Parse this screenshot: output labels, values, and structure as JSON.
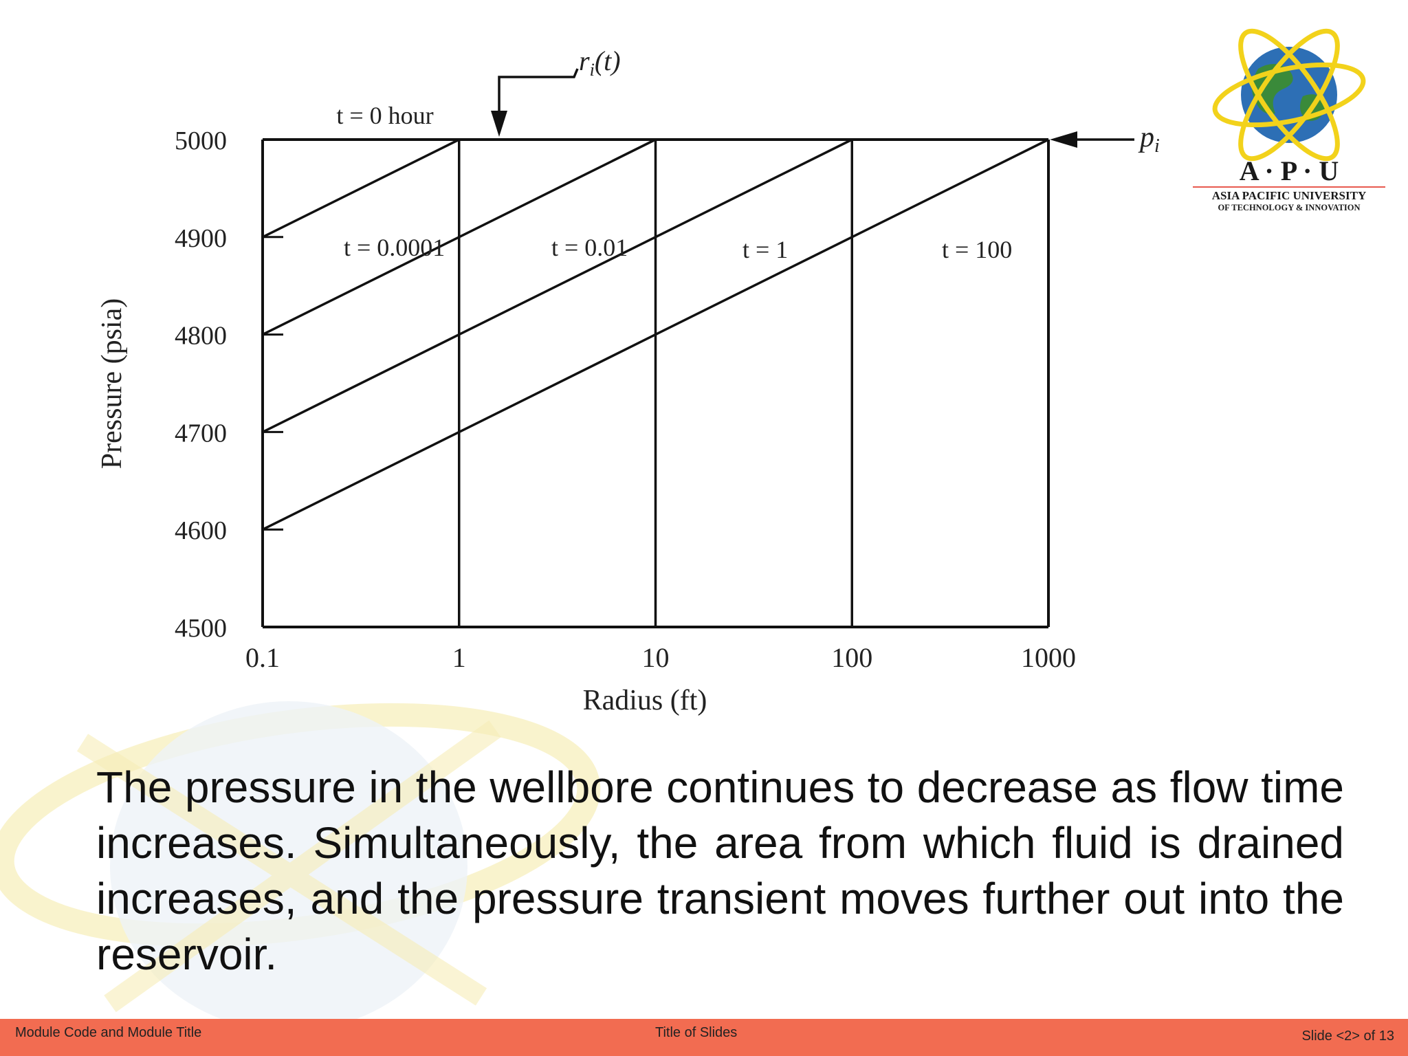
{
  "chart_data": {
    "type": "line",
    "x_scale": "log",
    "xlabel": "Radius (ft)",
    "ylabel": "Pressure (psia)",
    "xlim": [
      0.1,
      1000
    ],
    "ylim": [
      4500,
      5000
    ],
    "x_ticks": [
      "0.1",
      "1",
      "10",
      "100",
      "1000"
    ],
    "y_ticks": [
      "5000",
      "4900",
      "4800",
      "4700",
      "4600",
      "4500"
    ],
    "grid": "vertical lines at each decade",
    "series": [
      {
        "name": "t = 0 hour",
        "x": [
          0.1,
          1000
        ],
        "y": [
          5000,
          5000
        ]
      },
      {
        "name": "t = 0.0001",
        "x": [
          0.1,
          1,
          1.5
        ],
        "y": [
          4900,
          5000,
          5000
        ]
      },
      {
        "name": "t = 0.01",
        "x": [
          0.1,
          1,
          10,
          15
        ],
        "y": [
          4800,
          4900,
          5000,
          5000
        ]
      },
      {
        "name": "t = 1",
        "x": [
          0.1,
          1,
          10,
          100,
          150
        ],
        "y": [
          4700,
          4800,
          4900,
          5000,
          5000
        ]
      },
      {
        "name": "t = 100",
        "x": [
          0.1,
          1,
          10,
          100,
          1000
        ],
        "y": [
          4600,
          4700,
          4800,
          4900,
          5000
        ]
      }
    ],
    "annotations": {
      "ri": "r",
      "ri_sub": "i",
      "ri_arg": "(t)",
      "pi": "p",
      "pi_sub": "i"
    }
  },
  "logo": {
    "name": "A · P · U",
    "line1": "ASIA PACIFIC UNIVERSITY",
    "line2": "OF TECHNOLOGY & INNOVATION",
    "colors": {
      "globe": "#2d6fb5",
      "land": "#3a8a3a",
      "orbit": "#f2d21b",
      "text": "#1a1a1a"
    }
  },
  "body_text": "The pressure in the wellbore continues to decrease as flow time increases. Simultaneously, the area from which fluid is drained increases, and the pressure transient moves further out into the reservoir.",
  "footer": {
    "left": "Module Code and Module Title",
    "center": "Title of Slides",
    "right": "Slide <2> of 13",
    "color": "#f26c51"
  }
}
